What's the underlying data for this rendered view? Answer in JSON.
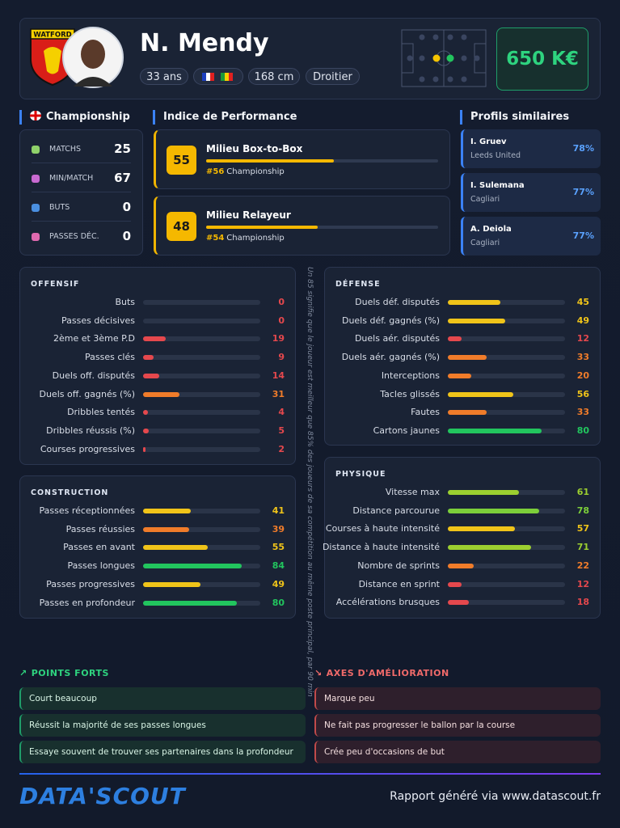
{
  "header": {
    "club": "WATFORD",
    "name": "N. Mendy",
    "tags": [
      "33 ans",
      "168 cm",
      "Droitier"
    ],
    "market_value": "650 K€"
  },
  "league": {
    "title": "Championship",
    "stats": [
      {
        "label": "MATCHS",
        "value": 25
      },
      {
        "label": "MIN/MATCH",
        "value": 67
      },
      {
        "label": "BUTS",
        "value": 0
      },
      {
        "label": "PASSES DÉC.",
        "value": 0
      }
    ]
  },
  "performance": {
    "title": "Indice de Performance",
    "items": [
      {
        "score": 55,
        "role": "Milieu Box-to-Box",
        "rank": "#56",
        "league": "Championship"
      },
      {
        "score": 48,
        "role": "Milieu Relayeur",
        "rank": "#54",
        "league": "Championship"
      }
    ]
  },
  "similar": {
    "title": "Profils similaires",
    "items": [
      {
        "name": "I. Gruev",
        "club": "Leeds United",
        "match": "78%"
      },
      {
        "name": "I. Sulemana",
        "club": "Cagliari",
        "match": "77%"
      },
      {
        "name": "A. Deiola",
        "club": "Cagliari",
        "match": "77%"
      }
    ]
  },
  "panels": [
    {
      "title": "OFFENSIF",
      "metrics": [
        {
          "label": "Buts",
          "value": 0
        },
        {
          "label": "Passes décisives",
          "value": 0
        },
        {
          "label": "2ème et 3ème P.D",
          "value": 19
        },
        {
          "label": "Passes clés",
          "value": 9
        },
        {
          "label": "Duels off. disputés",
          "value": 14
        },
        {
          "label": "Duels off. gagnés (%)",
          "value": 31
        },
        {
          "label": "Dribbles tentés",
          "value": 4
        },
        {
          "label": "Dribbles réussis (%)",
          "value": 5
        },
        {
          "label": "Courses progressives",
          "value": 2
        }
      ]
    },
    {
      "title": "CONSTRUCTION",
      "metrics": [
        {
          "label": "Passes réceptionnées",
          "value": 41
        },
        {
          "label": "Passes réussies",
          "value": 39
        },
        {
          "label": "Passes en avant",
          "value": 55
        },
        {
          "label": "Passes longues",
          "value": 84
        },
        {
          "label": "Passes progressives",
          "value": 49
        },
        {
          "label": "Passes en profondeur",
          "value": 80
        }
      ]
    },
    {
      "title": "DÉFENSE",
      "metrics": [
        {
          "label": "Duels déf. disputés",
          "value": 45
        },
        {
          "label": "Duels déf. gagnés (%)",
          "value": 49
        },
        {
          "label": "Duels aér. disputés",
          "value": 12
        },
        {
          "label": "Duels aér. gagnés (%)",
          "value": 33
        },
        {
          "label": "Interceptions",
          "value": 20
        },
        {
          "label": "Tacles glissés",
          "value": 56
        },
        {
          "label": "Fautes",
          "value": 33
        },
        {
          "label": "Cartons jaunes",
          "value": 80
        }
      ]
    },
    {
      "title": "PHYSIQUE",
      "metrics": [
        {
          "label": "Vitesse max",
          "value": 61
        },
        {
          "label": "Distance parcourue",
          "value": 78
        },
        {
          "label": "Courses à haute intensité",
          "value": 57
        },
        {
          "label": "Distance à haute intensité",
          "value": 71
        },
        {
          "label": "Nombre de sprints",
          "value": 22
        },
        {
          "label": "Distance en sprint",
          "value": 12
        },
        {
          "label": "Accélérations brusques",
          "value": 18
        }
      ]
    }
  ],
  "note": "Un 85 signifie que le joueur est meilleur que 85% des joueurs de sa compétition au même poste principal, par 90 min",
  "strengths": {
    "title": "POINTS FORTS",
    "items": [
      "Court beaucoup",
      "Réussit la majorité de ses passes longues",
      "Essaye souvent de trouver ses partenaires dans la profondeur"
    ]
  },
  "improvements": {
    "title": "AXES D'AMÉLIORATION",
    "items": [
      "Marque peu",
      "Ne fait pas progresser le ballon par la course",
      "Crée peu d'occasions de but"
    ]
  },
  "footer": {
    "logo": "DATA'SCOUT",
    "text": "Rapport généré via www.datascout.fr"
  }
}
